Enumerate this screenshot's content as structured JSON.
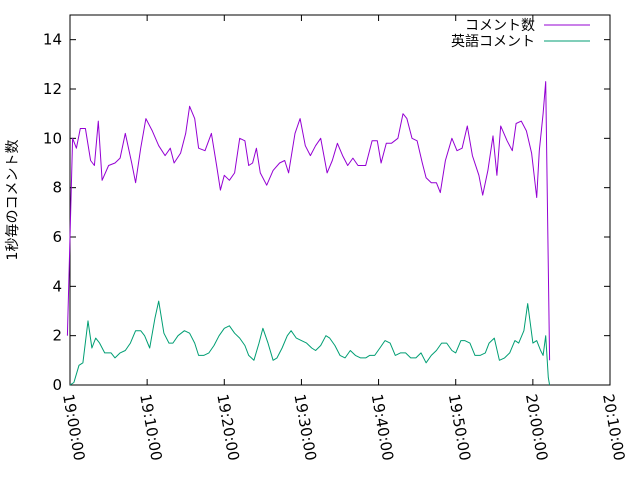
{
  "chart_data": {
    "type": "line",
    "ylabel": "1秒毎のコメント数",
    "xlabel": "",
    "xlim": [
      "19:00:00",
      "20:10:00"
    ],
    "ylim": [
      0,
      15
    ],
    "x_ticks": [
      "19:00:00",
      "19:10:00",
      "19:20:00",
      "19:30:00",
      "19:40:00",
      "19:50:00",
      "20:00:00",
      "20:10:00"
    ],
    "y_ticks": [
      0,
      2,
      4,
      6,
      8,
      10,
      12,
      14
    ],
    "grid": false,
    "legend": "top-right",
    "series": [
      {
        "name": "コメント数",
        "color": "#9400d3",
        "points": [
          [
            "18:59:40",
            2.0
          ],
          [
            "19:00:20",
            10.0
          ],
          [
            "19:00:50",
            9.6
          ],
          [
            "19:01:20",
            10.4
          ],
          [
            "19:02:00",
            10.4
          ],
          [
            "19:02:40",
            9.1
          ],
          [
            "19:03:10",
            8.9
          ],
          [
            "19:03:40",
            10.7
          ],
          [
            "19:04:10",
            8.3
          ],
          [
            "19:05:00",
            8.9
          ],
          [
            "19:05:50",
            9.0
          ],
          [
            "19:06:30",
            9.2
          ],
          [
            "19:07:10",
            10.2
          ],
          [
            "19:08:00",
            9.0
          ],
          [
            "19:08:30",
            8.2
          ],
          [
            "19:09:10",
            9.6
          ],
          [
            "19:09:50",
            10.8
          ],
          [
            "19:10:40",
            10.3
          ],
          [
            "19:11:30",
            9.7
          ],
          [
            "19:12:20",
            9.3
          ],
          [
            "19:13:00",
            9.6
          ],
          [
            "19:13:30",
            9.0
          ],
          [
            "19:14:20",
            9.4
          ],
          [
            "19:15:00",
            10.2
          ],
          [
            "19:15:30",
            11.3
          ],
          [
            "19:16:10",
            10.8
          ],
          [
            "19:16:40",
            9.6
          ],
          [
            "19:17:30",
            9.5
          ],
          [
            "19:18:20",
            10.2
          ],
          [
            "19:19:00",
            8.9
          ],
          [
            "19:19:30",
            7.9
          ],
          [
            "19:20:00",
            8.5
          ],
          [
            "19:20:40",
            8.3
          ],
          [
            "19:21:20",
            8.6
          ],
          [
            "19:22:00",
            10.0
          ],
          [
            "19:22:40",
            9.9
          ],
          [
            "19:23:10",
            8.9
          ],
          [
            "19:23:40",
            9.0
          ],
          [
            "19:24:10",
            9.6
          ],
          [
            "19:24:40",
            8.6
          ],
          [
            "19:25:30",
            8.1
          ],
          [
            "19:26:20",
            8.7
          ],
          [
            "19:27:10",
            9.0
          ],
          [
            "19:27:50",
            9.1
          ],
          [
            "19:28:20",
            8.6
          ],
          [
            "19:29:10",
            10.2
          ],
          [
            "19:29:50",
            10.8
          ],
          [
            "19:30:30",
            9.7
          ],
          [
            "19:31:10",
            9.3
          ],
          [
            "19:31:50",
            9.7
          ],
          [
            "19:32:30",
            10.0
          ],
          [
            "19:33:20",
            8.6
          ],
          [
            "19:34:00",
            9.1
          ],
          [
            "19:34:40",
            9.8
          ],
          [
            "19:35:20",
            9.3
          ],
          [
            "19:36:00",
            8.9
          ],
          [
            "19:36:40",
            9.2
          ],
          [
            "19:37:20",
            8.9
          ],
          [
            "19:38:20",
            8.9
          ],
          [
            "19:39:10",
            9.9
          ],
          [
            "19:39:50",
            9.9
          ],
          [
            "19:40:20",
            9.0
          ],
          [
            "19:41:00",
            9.8
          ],
          [
            "19:41:40",
            9.8
          ],
          [
            "19:42:30",
            10.0
          ],
          [
            "19:43:10",
            11.0
          ],
          [
            "19:43:40",
            10.8
          ],
          [
            "19:44:20",
            10.0
          ],
          [
            "19:45:00",
            9.9
          ],
          [
            "19:45:40",
            9.0
          ],
          [
            "19:46:10",
            8.4
          ],
          [
            "19:46:50",
            8.2
          ],
          [
            "19:47:30",
            8.2
          ],
          [
            "19:48:00",
            7.8
          ],
          [
            "19:48:40",
            9.1
          ],
          [
            "19:49:30",
            10.0
          ],
          [
            "19:50:10",
            9.5
          ],
          [
            "19:50:50",
            9.6
          ],
          [
            "19:51:30",
            10.5
          ],
          [
            "19:52:10",
            9.3
          ],
          [
            "19:53:00",
            8.5
          ],
          [
            "19:53:30",
            7.7
          ],
          [
            "19:54:10",
            8.7
          ],
          [
            "19:54:50",
            10.1
          ],
          [
            "19:55:20",
            8.5
          ],
          [
            "19:55:50",
            10.5
          ],
          [
            "19:56:40",
            9.9
          ],
          [
            "19:57:20",
            9.5
          ],
          [
            "19:57:50",
            10.6
          ],
          [
            "19:58:30",
            10.7
          ],
          [
            "19:59:10",
            10.3
          ],
          [
            "19:59:50",
            9.4
          ],
          [
            "20:00:30",
            7.6
          ],
          [
            "20:00:50",
            9.5
          ],
          [
            "20:01:20",
            11.0
          ],
          [
            "20:01:40",
            12.3
          ],
          [
            "20:02:10",
            1.0
          ]
        ]
      },
      {
        "name": "英語コメント",
        "color": "#009e73",
        "points": [
          [
            "19:00:00",
            0.0
          ],
          [
            "19:00:30",
            0.1
          ],
          [
            "19:01:10",
            0.8
          ],
          [
            "19:01:40",
            0.9
          ],
          [
            "19:02:20",
            2.6
          ],
          [
            "19:02:50",
            1.5
          ],
          [
            "19:03:20",
            1.9
          ],
          [
            "19:03:50",
            1.7
          ],
          [
            "19:04:30",
            1.3
          ],
          [
            "19:05:20",
            1.3
          ],
          [
            "19:05:50",
            1.1
          ],
          [
            "19:06:30",
            1.3
          ],
          [
            "19:07:10",
            1.4
          ],
          [
            "19:07:50",
            1.7
          ],
          [
            "19:08:30",
            2.2
          ],
          [
            "19:09:10",
            2.2
          ],
          [
            "19:09:40",
            2.0
          ],
          [
            "19:10:20",
            1.5
          ],
          [
            "19:11:00",
            2.7
          ],
          [
            "19:11:30",
            3.4
          ],
          [
            "19:12:10",
            2.1
          ],
          [
            "19:12:50",
            1.7
          ],
          [
            "19:13:20",
            1.7
          ],
          [
            "19:14:00",
            2.0
          ],
          [
            "19:14:50",
            2.2
          ],
          [
            "19:15:30",
            2.1
          ],
          [
            "19:16:10",
            1.7
          ],
          [
            "19:16:40",
            1.2
          ],
          [
            "19:17:20",
            1.2
          ],
          [
            "19:18:00",
            1.3
          ],
          [
            "19:18:40",
            1.6
          ],
          [
            "19:19:20",
            2.0
          ],
          [
            "19:20:00",
            2.3
          ],
          [
            "19:20:40",
            2.4
          ],
          [
            "19:21:20",
            2.1
          ],
          [
            "19:22:00",
            1.9
          ],
          [
            "19:22:40",
            1.6
          ],
          [
            "19:23:10",
            1.2
          ],
          [
            "19:23:50",
            1.0
          ],
          [
            "19:24:30",
            1.7
          ],
          [
            "19:25:00",
            2.3
          ],
          [
            "19:25:40",
            1.7
          ],
          [
            "19:26:20",
            1.0
          ],
          [
            "19:26:50",
            1.1
          ],
          [
            "19:27:30",
            1.5
          ],
          [
            "19:28:10",
            2.0
          ],
          [
            "19:28:40",
            2.2
          ],
          [
            "19:29:20",
            1.9
          ],
          [
            "19:30:00",
            1.8
          ],
          [
            "19:30:40",
            1.7
          ],
          [
            "19:31:20",
            1.5
          ],
          [
            "19:31:50",
            1.4
          ],
          [
            "19:32:30",
            1.6
          ],
          [
            "19:33:10",
            2.0
          ],
          [
            "19:33:40",
            1.9
          ],
          [
            "19:34:20",
            1.6
          ],
          [
            "19:35:00",
            1.2
          ],
          [
            "19:35:40",
            1.1
          ],
          [
            "19:36:20",
            1.4
          ],
          [
            "19:37:00",
            1.2
          ],
          [
            "19:37:40",
            1.1
          ],
          [
            "19:38:20",
            1.1
          ],
          [
            "19:38:50",
            1.2
          ],
          [
            "19:39:30",
            1.2
          ],
          [
            "19:40:10",
            1.5
          ],
          [
            "19:40:50",
            1.8
          ],
          [
            "19:41:30",
            1.7
          ],
          [
            "19:42:10",
            1.2
          ],
          [
            "19:42:50",
            1.3
          ],
          [
            "19:43:30",
            1.3
          ],
          [
            "19:44:10",
            1.1
          ],
          [
            "19:44:50",
            1.1
          ],
          [
            "19:45:30",
            1.3
          ],
          [
            "19:46:10",
            0.9
          ],
          [
            "19:46:50",
            1.2
          ],
          [
            "19:47:30",
            1.4
          ],
          [
            "19:48:10",
            1.7
          ],
          [
            "19:48:50",
            1.7
          ],
          [
            "19:49:30",
            1.4
          ],
          [
            "19:50:00",
            1.3
          ],
          [
            "19:50:40",
            1.8
          ],
          [
            "19:51:10",
            1.8
          ],
          [
            "19:51:50",
            1.7
          ],
          [
            "19:52:30",
            1.2
          ],
          [
            "19:53:10",
            1.2
          ],
          [
            "19:53:50",
            1.3
          ],
          [
            "19:54:20",
            1.7
          ],
          [
            "19:55:00",
            1.9
          ],
          [
            "19:55:40",
            1.0
          ],
          [
            "19:56:20",
            1.1
          ],
          [
            "19:57:00",
            1.3
          ],
          [
            "19:57:40",
            1.8
          ],
          [
            "19:58:10",
            1.7
          ],
          [
            "19:58:50",
            2.2
          ],
          [
            "19:59:20",
            3.3
          ],
          [
            "20:00:00",
            1.7
          ],
          [
            "20:00:30",
            1.8
          ],
          [
            "20:01:00",
            1.4
          ],
          [
            "20:01:20",
            1.2
          ],
          [
            "20:01:40",
            2.0
          ],
          [
            "20:02:00",
            0.3
          ],
          [
            "20:02:10",
            0.0
          ]
        ]
      }
    ]
  }
}
